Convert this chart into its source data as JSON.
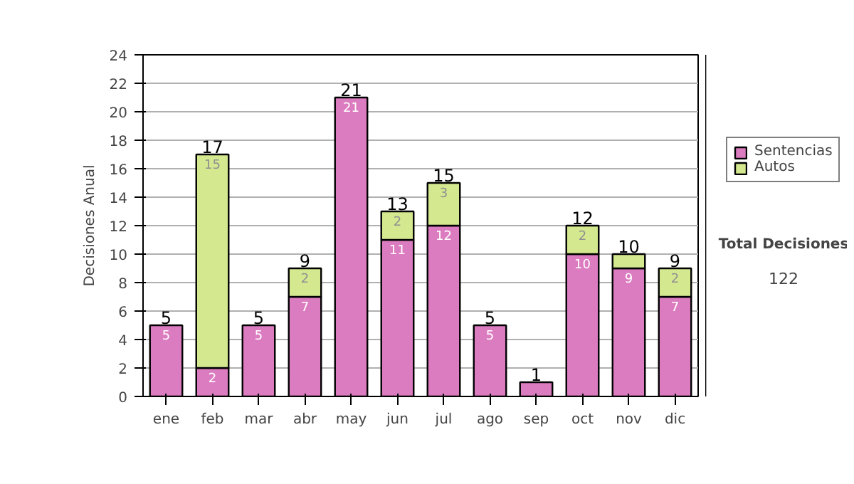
{
  "chart_data": {
    "type": "bar",
    "stacked": true,
    "ylabel": "Decisiones Anual",
    "categories": [
      "ene",
      "feb",
      "mar",
      "abr",
      "may",
      "jun",
      "jul",
      "ago",
      "sep",
      "oct",
      "nov",
      "dic"
    ],
    "series": [
      {
        "name": "Sentencias",
        "color": "#dc7cc0",
        "values": [
          5,
          2,
          5,
          7,
          21,
          11,
          12,
          5,
          1,
          10,
          9,
          7
        ],
        "value_labels": [
          "5",
          "2",
          "5",
          "7",
          "21",
          "11",
          "12",
          "5",
          null,
          "10",
          "9",
          "7"
        ]
      },
      {
        "name": "Autos",
        "color": "#d4e890",
        "values": [
          0,
          15,
          0,
          2,
          0,
          2,
          3,
          0,
          0,
          2,
          1,
          2
        ],
        "value_labels": [
          null,
          "15",
          null,
          "2",
          null,
          "2",
          "3",
          null,
          null,
          "2",
          null,
          "2"
        ]
      }
    ],
    "totals": [
      "5",
      "17",
      "5",
      "9",
      "21",
      "13",
      "15",
      "5",
      "1",
      "12",
      "10",
      "9"
    ],
    "ylim": [
      0,
      24
    ],
    "yticks": [
      0,
      2,
      4,
      6,
      8,
      10,
      12,
      14,
      16,
      18,
      20,
      22,
      24
    ],
    "grid": "y",
    "legend": "right",
    "annotations": [
      "Total Decisiones",
      "122"
    ]
  }
}
